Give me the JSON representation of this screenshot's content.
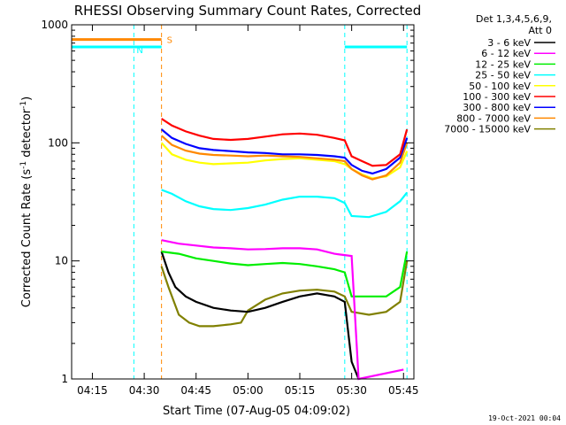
{
  "chart_data": {
    "type": "line",
    "title": "RHESSI Observing Summary Count Rates, Corrected",
    "xlabel": "Start Time (07-Aug-05 04:09:02)",
    "ylabel_main": "Corrected Count Rate (s",
    "ylabel_sup1": "-1",
    "ylabel_mid": " detector",
    "ylabel_sup2": "-1",
    "ylabel_end": ")",
    "y_scale": "log",
    "ylim": [
      1,
      1000
    ],
    "xlim": [
      "04:09",
      "05:48"
    ],
    "x_ticks": [
      "04:15",
      "04:30",
      "04:45",
      "05:00",
      "05:15",
      "05:30",
      "05:45"
    ],
    "y_ticks": [
      "1",
      "10",
      "100",
      "1000"
    ],
    "legend_header": [
      "Det 1,3,4,5,6,9,",
      "Att 0"
    ],
    "legend_placement": "right",
    "timestamp": "19-Oct-2021 00:04",
    "flag_labels": {
      "saa": "S",
      "night": "N"
    },
    "series": [
      {
        "name": "3 - 6 keV",
        "color": "#000000",
        "points": [
          [
            "04:35",
            12
          ],
          [
            "04:37",
            8
          ],
          [
            "04:39",
            6
          ],
          [
            "04:42",
            5
          ],
          [
            "04:45",
            4.5
          ],
          [
            "04:50",
            4
          ],
          [
            "04:55",
            3.8
          ],
          [
            "05:00",
            3.7
          ],
          [
            "05:05",
            4
          ],
          [
            "05:10",
            4.5
          ],
          [
            "05:15",
            5
          ],
          [
            "05:20",
            5.3
          ],
          [
            "05:25",
            5
          ],
          [
            "05:28",
            4.5
          ],
          [
            "05:30",
            1.4
          ],
          [
            "05:32",
            1
          ]
        ]
      },
      {
        "name": "6 - 12 keV",
        "color": "#ff00ff",
        "points": [
          [
            "04:35",
            15
          ],
          [
            "04:40",
            14
          ],
          [
            "04:45",
            13.5
          ],
          [
            "04:50",
            13
          ],
          [
            "04:55",
            12.8
          ],
          [
            "05:00",
            12.5
          ],
          [
            "05:05",
            12.6
          ],
          [
            "05:10",
            12.8
          ],
          [
            "05:15",
            12.8
          ],
          [
            "05:20",
            12.5
          ],
          [
            "05:25",
            11.5
          ],
          [
            "05:27",
            11.3
          ],
          [
            "05:30",
            11
          ],
          [
            "05:32",
            1
          ],
          [
            "05:45",
            1.2
          ]
        ]
      },
      {
        "name": "12 - 25 keV",
        "color": "#00ee00",
        "points": [
          [
            "04:35",
            12
          ],
          [
            "04:40",
            11.5
          ],
          [
            "04:45",
            10.5
          ],
          [
            "04:50",
            10
          ],
          [
            "04:55",
            9.5
          ],
          [
            "05:00",
            9.2
          ],
          [
            "05:05",
            9.4
          ],
          [
            "05:10",
            9.6
          ],
          [
            "05:15",
            9.4
          ],
          [
            "05:20",
            9
          ],
          [
            "05:25",
            8.5
          ],
          [
            "05:28",
            8
          ],
          [
            "05:30",
            5
          ],
          [
            "05:35",
            5
          ],
          [
            "05:40",
            5
          ],
          [
            "05:44",
            6
          ],
          [
            "05:46",
            12
          ]
        ]
      },
      {
        "name": "25 - 50 keV",
        "color": "#00ffff",
        "points": [
          [
            "04:35",
            40
          ],
          [
            "04:38",
            37
          ],
          [
            "04:42",
            32
          ],
          [
            "04:46",
            29
          ],
          [
            "04:50",
            27.5
          ],
          [
            "04:55",
            27
          ],
          [
            "05:00",
            28
          ],
          [
            "05:05",
            30
          ],
          [
            "05:10",
            33
          ],
          [
            "05:15",
            35
          ],
          [
            "05:20",
            35
          ],
          [
            "05:25",
            34
          ],
          [
            "05:28",
            31
          ],
          [
            "05:30",
            24
          ],
          [
            "05:35",
            23.5
          ],
          [
            "05:40",
            26
          ],
          [
            "05:44",
            32
          ],
          [
            "05:46",
            38
          ]
        ]
      },
      {
        "name": "50 - 100 keV",
        "color": "#ffff00",
        "points": [
          [
            "04:35",
            100
          ],
          [
            "04:38",
            80
          ],
          [
            "04:42",
            72
          ],
          [
            "04:46",
            68
          ],
          [
            "04:50",
            66
          ],
          [
            "04:55",
            67
          ],
          [
            "05:00",
            68
          ],
          [
            "05:05",
            71
          ],
          [
            "05:10",
            73
          ],
          [
            "05:15",
            74
          ],
          [
            "05:20",
            72
          ],
          [
            "05:25",
            70
          ],
          [
            "05:28",
            66
          ],
          [
            "05:30",
            60
          ],
          [
            "05:33",
            54
          ],
          [
            "05:36",
            50
          ],
          [
            "05:40",
            52
          ],
          [
            "05:44",
            62
          ],
          [
            "05:46",
            85
          ]
        ]
      },
      {
        "name": "100 - 300 keV",
        "color": "#ff0000",
        "points": [
          [
            "04:35",
            160
          ],
          [
            "04:38",
            140
          ],
          [
            "04:42",
            125
          ],
          [
            "04:46",
            115
          ],
          [
            "04:50",
            108
          ],
          [
            "04:55",
            106
          ],
          [
            "05:00",
            108
          ],
          [
            "05:05",
            113
          ],
          [
            "05:10",
            118
          ],
          [
            "05:15",
            120
          ],
          [
            "05:20",
            117
          ],
          [
            "05:25",
            110
          ],
          [
            "05:28",
            105
          ],
          [
            "05:30",
            77
          ],
          [
            "05:33",
            70
          ],
          [
            "05:36",
            64
          ],
          [
            "05:40",
            65
          ],
          [
            "05:44",
            80
          ],
          [
            "05:46",
            130
          ]
        ]
      },
      {
        "name": "300 - 800 keV",
        "color": "#0000ff",
        "points": [
          [
            "04:35",
            130
          ],
          [
            "04:38",
            110
          ],
          [
            "04:42",
            98
          ],
          [
            "04:46",
            90
          ],
          [
            "04:50",
            87
          ],
          [
            "04:55",
            85
          ],
          [
            "05:00",
            83
          ],
          [
            "05:05",
            82
          ],
          [
            "05:10",
            80
          ],
          [
            "05:15",
            80
          ],
          [
            "05:20",
            79
          ],
          [
            "05:25",
            77
          ],
          [
            "05:28",
            75
          ],
          [
            "05:30",
            65
          ],
          [
            "05:33",
            58
          ],
          [
            "05:36",
            55
          ],
          [
            "05:40",
            60
          ],
          [
            "05:44",
            75
          ],
          [
            "05:46",
            110
          ]
        ]
      },
      {
        "name": "800 - 7000 keV",
        "color": "#ff8800",
        "points": [
          [
            "04:35",
            115
          ],
          [
            "04:38",
            96
          ],
          [
            "04:42",
            86
          ],
          [
            "04:46",
            81
          ],
          [
            "04:50",
            79
          ],
          [
            "04:55",
            78
          ],
          [
            "05:00",
            77
          ],
          [
            "05:05",
            78
          ],
          [
            "05:10",
            77
          ],
          [
            "05:15",
            76
          ],
          [
            "05:20",
            74
          ],
          [
            "05:25",
            72
          ],
          [
            "05:28",
            70
          ],
          [
            "05:30",
            60
          ],
          [
            "05:33",
            53
          ],
          [
            "05:36",
            49
          ],
          [
            "05:40",
            53
          ],
          [
            "05:44",
            68
          ],
          [
            "05:46",
            100
          ]
        ]
      },
      {
        "name": "7000 - 15000 keV",
        "color": "#808000",
        "points": [
          [
            "04:35",
            9
          ],
          [
            "04:37",
            6
          ],
          [
            "04:40",
            3.5
          ],
          [
            "04:43",
            3
          ],
          [
            "04:46",
            2.8
          ],
          [
            "04:50",
            2.8
          ],
          [
            "04:55",
            2.9
          ],
          [
            "04:58",
            3
          ],
          [
            "05:00",
            3.8
          ],
          [
            "05:05",
            4.7
          ],
          [
            "05:10",
            5.3
          ],
          [
            "05:15",
            5.6
          ],
          [
            "05:20",
            5.7
          ],
          [
            "05:25",
            5.5
          ],
          [
            "05:28",
            5
          ],
          [
            "05:30",
            3.7
          ],
          [
            "05:35",
            3.5
          ],
          [
            "05:40",
            3.7
          ],
          [
            "05:44",
            4.5
          ],
          [
            "05:46",
            10
          ]
        ]
      }
    ],
    "flags": {
      "saa": {
        "color": "#ff8800",
        "value": 750,
        "x_range": [
          "04:09",
          "04:35"
        ]
      },
      "night_top": [
        {
          "x_range": [
            "04:09",
            "04:35"
          ],
          "value": 650
        },
        {
          "x_range": [
            "05:28",
            "05:46"
          ],
          "value": 650
        }
      ],
      "night_boundaries": [
        "04:09",
        "04:27",
        "05:28",
        "05:46"
      ],
      "saa_boundary": "04:35",
      "night_color": "#00ffff"
    }
  }
}
